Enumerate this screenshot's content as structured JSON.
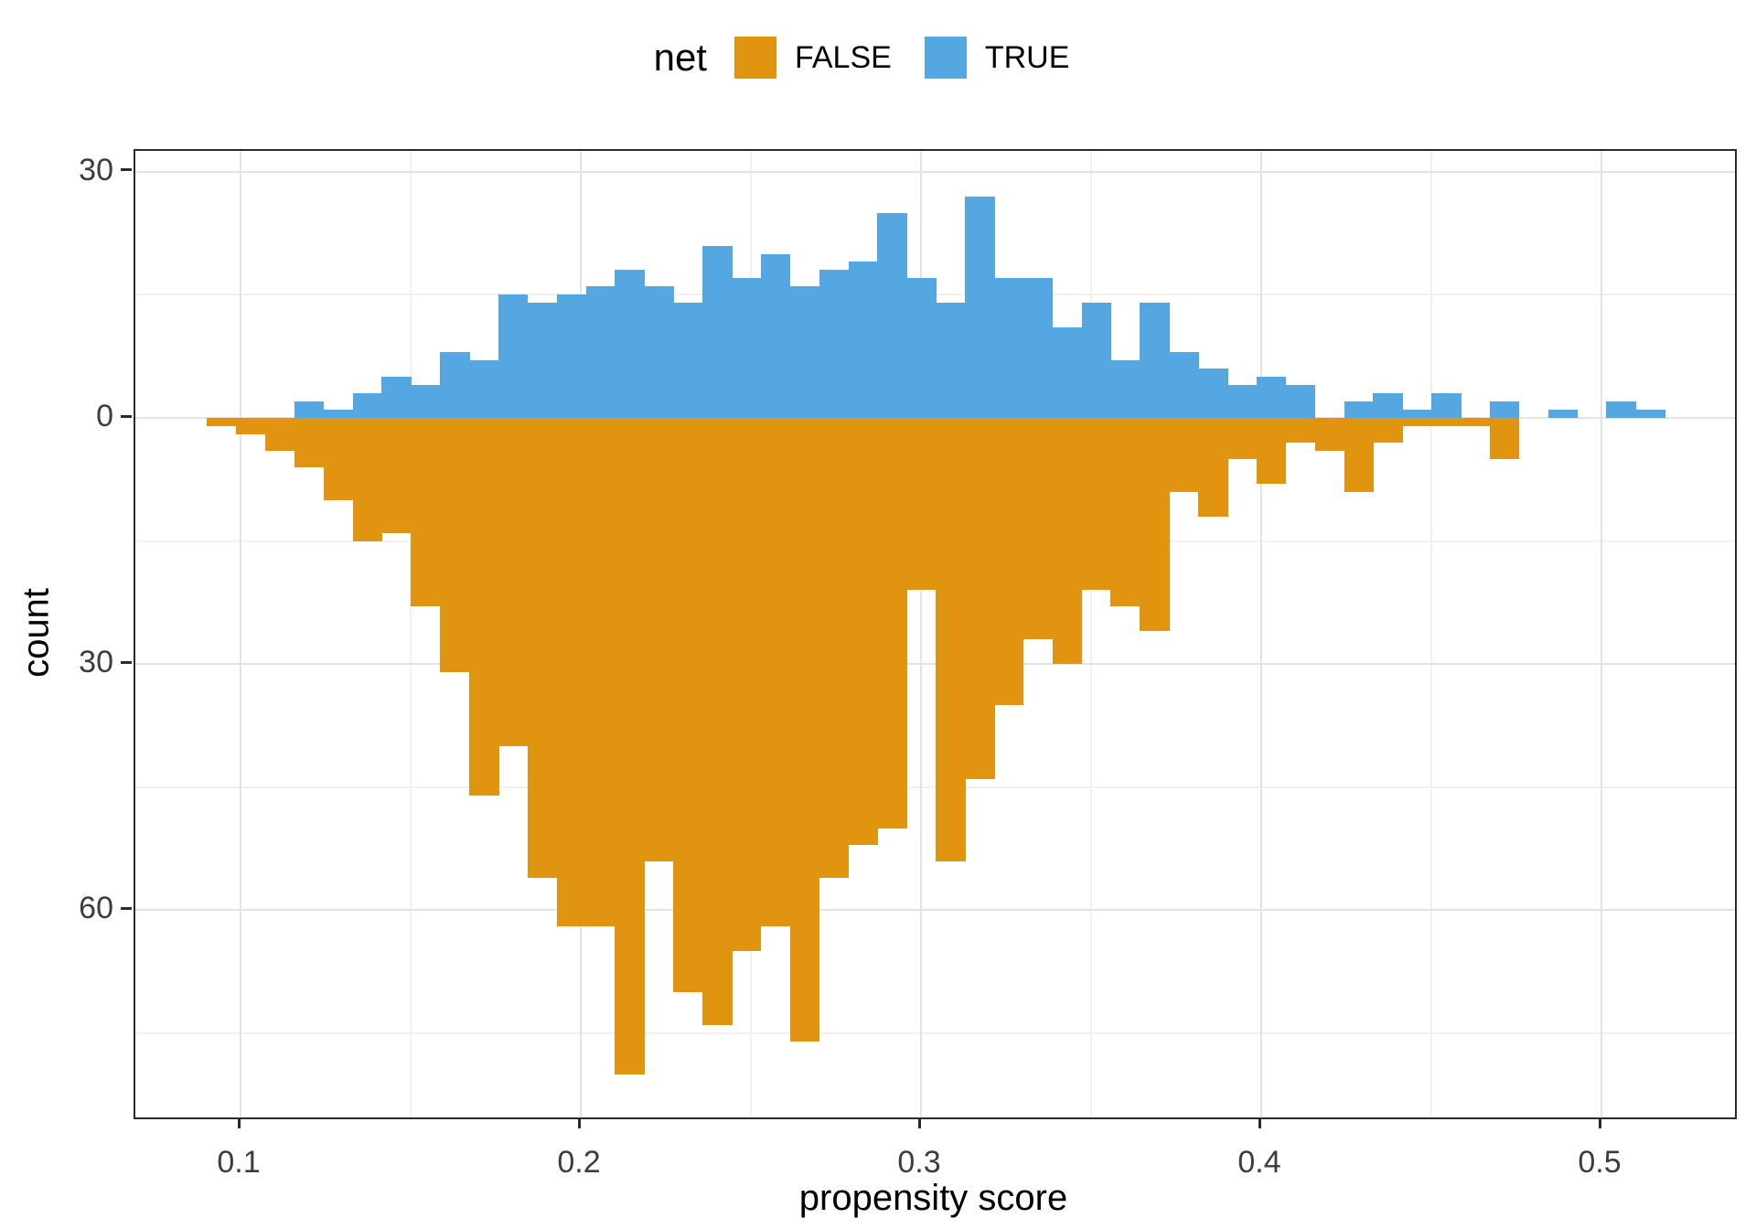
{
  "legend": {
    "title": "net",
    "items": [
      {
        "label": "FALSE",
        "color": "#e0940f"
      },
      {
        "label": "TRUE",
        "color": "#54a7e0"
      }
    ]
  },
  "axes": {
    "x": {
      "title": "propensity score",
      "tick_labels": [
        "0.1",
        "0.2",
        "0.3",
        "0.4",
        "0.5"
      ]
    },
    "y": {
      "title": "count",
      "tick_labels": [
        "30",
        "0",
        "30",
        "60"
      ]
    }
  },
  "colors": {
    "false_orange": "#e0940f",
    "true_blue": "#54a7e0",
    "grid_major": "#e4e4e4",
    "grid_minor": "#f1f1f1",
    "panel_border": "#2b2b2b",
    "tick_text": "#3d3d3d"
  },
  "chart_data": {
    "type": "bar",
    "subtype": "mirrored_histogram",
    "title": "",
    "xlabel": "propensity score",
    "ylabel": "count",
    "legend_title": "net",
    "legend_position": "top-center",
    "grid": true,
    "bin_start": 0.0901,
    "bin_width": 0.00857,
    "x_ticks": [
      0.1,
      0.2,
      0.3,
      0.4,
      0.5
    ],
    "x_minor_ticks": [
      0.15,
      0.25,
      0.35,
      0.45
    ],
    "y_ticks": [
      {
        "value": 30,
        "label": "30"
      },
      {
        "value": 0,
        "label": "0"
      },
      {
        "value": -30,
        "label": "30"
      },
      {
        "value": -60,
        "label": "60"
      }
    ],
    "y_minor_ticks": [
      15,
      -15,
      -45,
      -75
    ],
    "x_domain": [
      0.069,
      0.542
    ],
    "y_domain": [
      -85.35,
      32.35
    ],
    "series": [
      {
        "name": "FALSE",
        "direction": "down",
        "color": "#e0940f",
        "counts": [
          1,
          2,
          4,
          6,
          10,
          15,
          14,
          23,
          31,
          46,
          40,
          56,
          62,
          62,
          80,
          54,
          70,
          74,
          65,
          62,
          76,
          56,
          52,
          50,
          21,
          54,
          44,
          35,
          27,
          30,
          21,
          23,
          26,
          9,
          12,
          5,
          8,
          3,
          4,
          9,
          3,
          1,
          1,
          1,
          5,
          0,
          0,
          0,
          0,
          0
        ]
      },
      {
        "name": "TRUE",
        "direction": "up",
        "color": "#54a7e0",
        "counts": [
          0,
          0,
          0,
          2,
          1,
          3,
          5,
          4,
          8,
          7,
          15,
          14,
          15,
          16,
          18,
          16,
          14,
          21,
          17,
          20,
          16,
          18,
          19,
          25,
          17,
          14,
          27,
          17,
          17,
          11,
          14,
          7,
          14,
          8,
          6,
          4,
          5,
          4,
          0,
          2,
          3,
          1,
          3,
          0,
          2,
          0,
          1,
          0,
          2,
          1
        ]
      }
    ]
  }
}
